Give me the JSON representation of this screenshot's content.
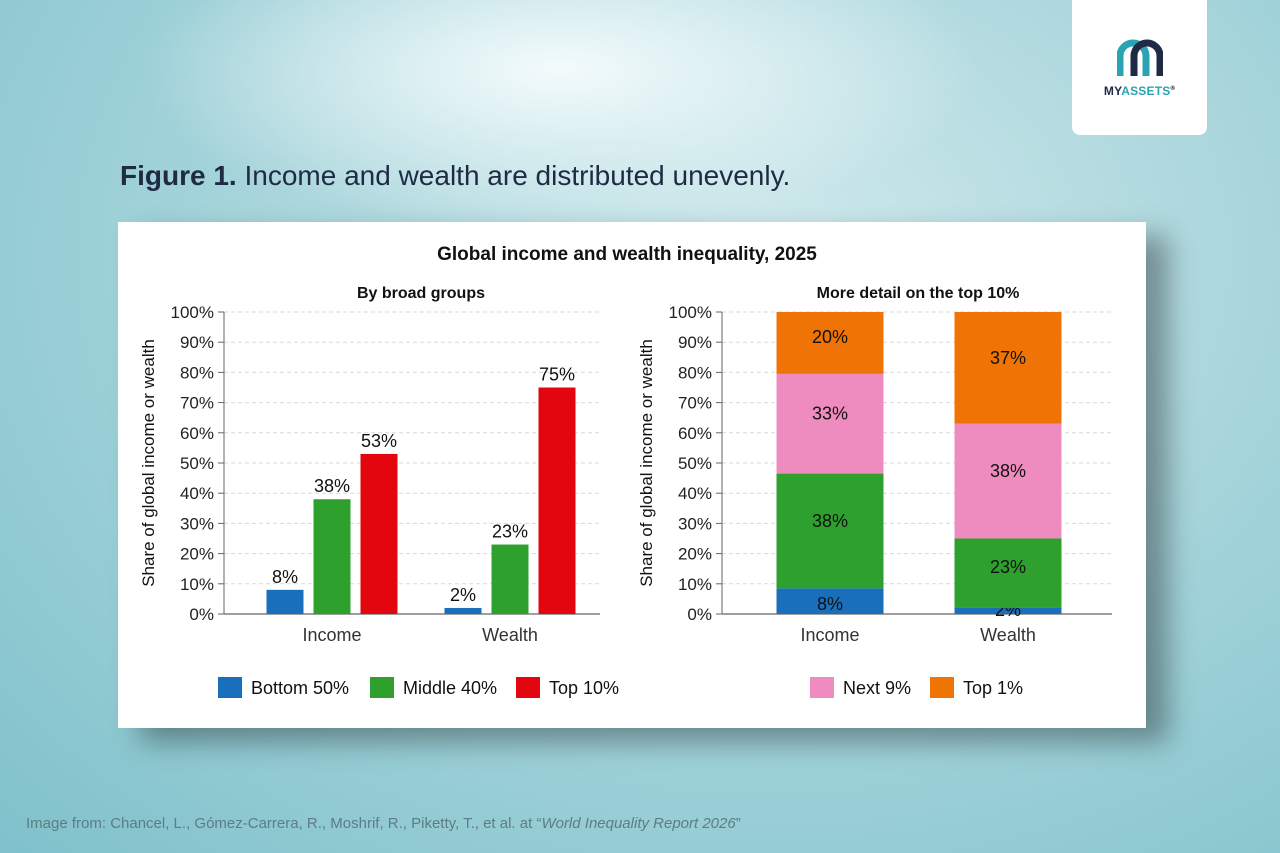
{
  "logo": {
    "text_a": "MY",
    "text_b": "ASSETS",
    "reg": "®"
  },
  "heading": {
    "label": "Figure 1.",
    "text": " Income and wealth are distributed unevenly."
  },
  "credit": {
    "prefix": "Image from: Chancel, L., Gómez-Carrera, R., Moshrif, R., Piketty, T., et al. at “",
    "source": "World Inequality Report 2026",
    "suffix": "”"
  },
  "colors": {
    "bottom50": "#1a6fbd",
    "middle40": "#2ea02e",
    "top10": "#e3060f",
    "next9": "#ef8cbf",
    "top1": "#f07405"
  },
  "chart_data": [
    {
      "type": "bar",
      "title": "Global income and wealth inequality, 2025",
      "subtitle": "By broad groups",
      "ylabel": "Share of global income or wealth",
      "xlabel": "",
      "ylim": [
        0,
        100
      ],
      "yticks": [
        "0%",
        "10%",
        "20%",
        "30%",
        "40%",
        "50%",
        "60%",
        "70%",
        "80%",
        "90%",
        "100%"
      ],
      "categories": [
        "Income",
        "Wealth"
      ],
      "series": [
        {
          "name": "Bottom 50%",
          "values": [
            8,
            2
          ],
          "labels": [
            "8%",
            "2%"
          ]
        },
        {
          "name": "Middle 40%",
          "values": [
            38,
            23
          ],
          "labels": [
            "38%",
            "23%"
          ]
        },
        {
          "name": "Top 10%",
          "values": [
            53,
            75
          ],
          "labels": [
            "53%",
            "75%"
          ]
        }
      ],
      "grid": true,
      "legend": "bottom"
    },
    {
      "type": "bar",
      "stacked": true,
      "subtitle": "More detail on the top 10%",
      "ylabel": "Share of global income or wealth",
      "ylim": [
        0,
        100
      ],
      "yticks": [
        "0%",
        "10%",
        "20%",
        "30%",
        "40%",
        "50%",
        "60%",
        "70%",
        "80%",
        "90%",
        "100%"
      ],
      "categories": [
        "Income",
        "Wealth"
      ],
      "series": [
        {
          "name": "Bottom 50%",
          "values": [
            8.5,
            2
          ],
          "labels": [
            "8%",
            "2%"
          ]
        },
        {
          "name": "Middle 40%",
          "values": [
            38,
            23
          ],
          "labels": [
            "38%",
            "23%"
          ]
        },
        {
          "name": "Next 9%",
          "values": [
            33,
            38
          ],
          "labels": [
            "33%",
            "38%"
          ]
        },
        {
          "name": "Top 1%",
          "values": [
            20.5,
            37
          ],
          "labels": [
            "20%",
            "37%"
          ]
        }
      ],
      "legend_entries": [
        "Next 9%",
        "Top 1%"
      ],
      "grid": true,
      "legend": "bottom"
    }
  ]
}
